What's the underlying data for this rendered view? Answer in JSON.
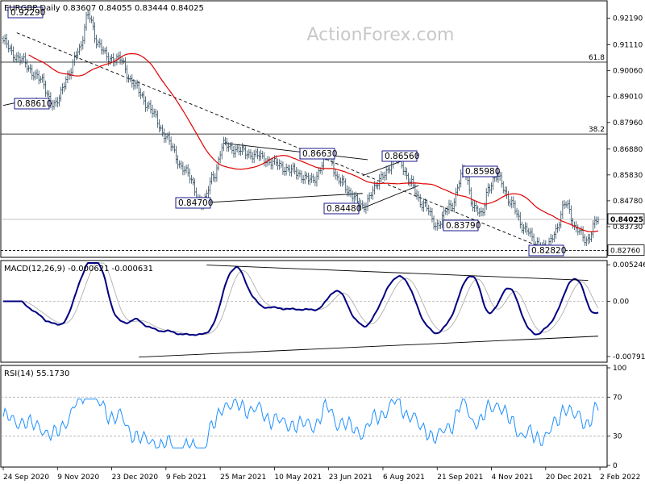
{
  "chart_data": [
    {
      "type": "ohlc",
      "header": "EURGBP,Daily  0.83607 0.84055 0.83444 0.84025",
      "watermark": "ActionForex.com",
      "ylim": [
        0.8255,
        0.928
      ],
      "y_ticks": [
        "0.92190",
        "0.91110",
        "0.90060",
        "0.89010",
        "0.87960",
        "0.86880",
        "0.85830",
        "0.84780",
        "0.83730"
      ],
      "y_tick_values": [
        0.9219,
        0.9111,
        0.9006,
        0.8901,
        0.8796,
        0.8688,
        0.8583,
        0.8478,
        0.8373
      ],
      "last_price": "0.84025",
      "last_price_value": 0.84025,
      "support_value": 0.8276,
      "support_label": "0.82760",
      "fib_levels": [
        {
          "label": "61.8",
          "value": 0.9041
        },
        {
          "label": "38.2",
          "value": 0.8749
        }
      ],
      "swing_labels": [
        {
          "text": "0.92290",
          "value": 0.9229
        },
        {
          "text": "0.88610",
          "value": 0.8861
        },
        {
          "text": "0.84700",
          "value": 0.847
        },
        {
          "text": "0.86630",
          "value": 0.8663
        },
        {
          "text": "0.84480",
          "value": 0.8448
        },
        {
          "text": "0.86560",
          "value": 0.8656
        },
        {
          "text": "0.83790",
          "value": 0.8379
        },
        {
          "text": "0.85980",
          "value": 0.8598
        },
        {
          "text": "0.82820",
          "value": 0.8282
        }
      ]
    },
    {
      "type": "line",
      "header": "MACD(12,26,9) -0.000621 -0.000631",
      "ylim": [
        -0.0085,
        0.0055
      ],
      "y_ticks": [
        "0.005246",
        "0.00",
        "-0.007916"
      ],
      "y_tick_values": [
        0.005246,
        0.0,
        -0.007916
      ],
      "zero_label": "0.00"
    },
    {
      "type": "line",
      "header": "RSI(14) 55.1730",
      "ylim": [
        0,
        100
      ],
      "y_ticks": [
        "100",
        "70",
        "30",
        "0"
      ],
      "y_tick_values": [
        100,
        70,
        30,
        0
      ]
    }
  ],
  "x_axis": {
    "labels": [
      "24 Sep 2020",
      "9 Nov 2020",
      "23 Dec 2020",
      "9 Feb 2021",
      "25 Mar 2021",
      "10 May 2021",
      "23 Jun 2021",
      "6 Aug 2021",
      "21 Sep 2021",
      "4 Nov 2021",
      "20 Dec 2021",
      "2 Feb 2022"
    ]
  },
  "colors": {
    "candles": "#2e4a5c",
    "ma": "#e00000",
    "macd": "#000080",
    "signal": "#b0b0b0",
    "rsi": "#1e90ff",
    "label_border": "#000080",
    "watermark": "#c8c8c8"
  }
}
